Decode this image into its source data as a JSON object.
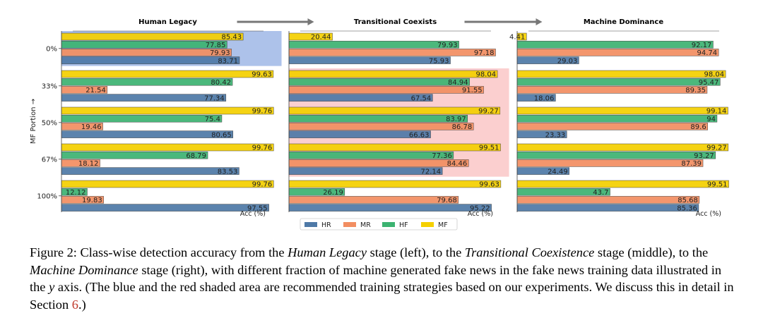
{
  "chart_data": {
    "type": "bar",
    "orientation": "horizontal",
    "panels": [
      {
        "title": "Human Legacy"
      },
      {
        "title": "Transitional Coexists"
      },
      {
        "title": "Machine Dominance"
      }
    ],
    "categories": [
      "0%",
      "33%",
      "50%",
      "67%",
      "100%"
    ],
    "ylabel": "MF Portion →",
    "xlabel": "Acc (%)",
    "xlim": [
      0,
      100
    ],
    "legend_position": "bottom-center",
    "series_order_top_to_bottom": [
      "MF",
      "HF",
      "MR",
      "HR"
    ],
    "series": [
      {
        "name": "HR",
        "color": "#4e79a7"
      },
      {
        "name": "MR",
        "color": "#f28e61"
      },
      {
        "name": "HF",
        "color": "#3cb371"
      },
      {
        "name": "MF",
        "color": "#f5d000"
      }
    ],
    "values": {
      "Human Legacy": {
        "MF": [
          85.43,
          99.63,
          99.76,
          99.76,
          99.76
        ],
        "HF": [
          77.85,
          80.42,
          75.4,
          68.79,
          12.12
        ],
        "MR": [
          79.93,
          21.54,
          19.46,
          18.12,
          19.83
        ],
        "HR": [
          83.71,
          77.34,
          80.65,
          83.53,
          97.55
        ]
      },
      "Transitional Coexists": {
        "MF": [
          20.44,
          98.04,
          99.27,
          99.51,
          99.63
        ],
        "HF": [
          79.93,
          84.94,
          83.97,
          77.36,
          26.19
        ],
        "MR": [
          97.18,
          91.55,
          86.78,
          84.46,
          79.68
        ],
        "HR": [
          75.93,
          67.54,
          66.63,
          72.14,
          95.22
        ]
      },
      "Machine Dominance": {
        "MF": [
          4.41,
          98.04,
          99.14,
          99.27,
          99.51
        ],
        "HF": [
          92.17,
          95.47,
          94.0,
          93.27,
          43.7
        ],
        "MR": [
          94.74,
          89.35,
          89.6,
          87.39,
          85.68
        ],
        "HR": [
          29.03,
          18.06,
          23.33,
          24.49,
          85.36
        ]
      }
    },
    "shaded_regions": [
      {
        "panel": "Human Legacy",
        "categories": [
          "0%"
        ],
        "color": "#6a8fd8"
      },
      {
        "panel": "Transitional Coexists",
        "categories": [
          "33%",
          "50%",
          "67%"
        ],
        "color": "#f7a8a8"
      }
    ]
  },
  "caption": {
    "figure_label": "Figure 2:",
    "t1": " Class-wise detection accuracy from the ",
    "e1": "Human Legacy",
    "t2": " stage (left), to the ",
    "e2": "Transitional Coexistence",
    "t3": " stage (middle), to the ",
    "e3": "Machine Dominance",
    "t4": " stage (right), with different fraction of machine generated fake news in the fake news training data illustrated in the ",
    "e4": "y",
    "t5": " axis. (The blue and the red shaded area are recommended training strategies based on our experiments. We discuss this in detail in Section ",
    "ref": "6",
    "t6": ".)"
  }
}
